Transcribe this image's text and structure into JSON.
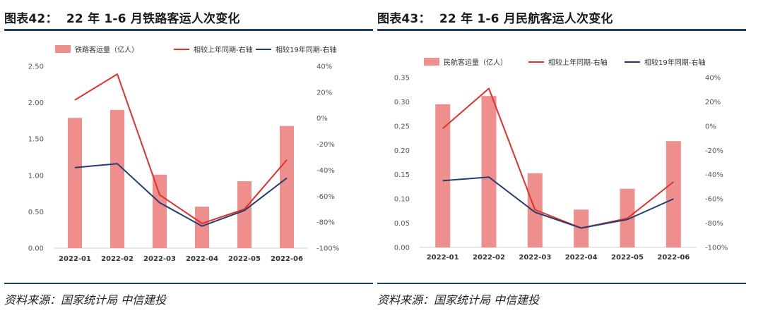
{
  "colors": {
    "bar": "#ef8f8d",
    "red_line": "#e2312a",
    "navy_line": "#263e6e",
    "rule": "#1f3d6b"
  },
  "chart_data": [
    {
      "type": "bar+line",
      "title": "图表42：  22 年 1-6 月铁路客运人次变化",
      "source": "资料来源：国家统计局   中信建投",
      "categories": [
        "2022-01",
        "2022-02",
        "2022-03",
        "2022-04",
        "2022-05",
        "2022-06"
      ],
      "bar_series": {
        "name": "铁路客运量（亿人）",
        "values": [
          1.79,
          1.9,
          1.01,
          0.57,
          0.92,
          1.68
        ]
      },
      "line_series": [
        {
          "name": "相较上年同期-右轴",
          "color_key": "red_line",
          "values": [
            14,
            34,
            -59,
            -81,
            -70,
            -32
          ]
        },
        {
          "name": "相较19年同期-右轴",
          "color_key": "navy_line",
          "values": [
            -38,
            -35,
            -65,
            -83,
            -71,
            -46
          ]
        }
      ],
      "y_left": {
        "min": 0,
        "max": 2.5,
        "step": 0.5,
        "ticks": [
          "0.00",
          "0.50",
          "1.00",
          "1.50",
          "2.00",
          "2.50"
        ]
      },
      "y_right": {
        "min": -100,
        "max": 40,
        "step": 20,
        "ticks": [
          "-100%",
          "-80%",
          "-60%",
          "-40%",
          "-20%",
          "0%",
          "20%",
          "40%"
        ]
      }
    },
    {
      "type": "bar+line",
      "title": "图表43：  22 年 1-6 月民航客运人次变化",
      "source": "资料来源：国家统计局   中信建投",
      "categories": [
        "2022-01",
        "2022-02",
        "2022-03",
        "2022-04",
        "2022-05",
        "2022-06"
      ],
      "bar_series": {
        "name": "民航客运量（亿人）",
        "values": [
          0.295,
          0.312,
          0.153,
          0.078,
          0.121,
          0.219
        ]
      },
      "line_series": [
        {
          "name": "相较上年同期-右轴",
          "color_key": "red_line",
          "values": [
            -2,
            31,
            -69,
            -84,
            -76,
            -46
          ]
        },
        {
          "name": "相较19年同期-右轴",
          "color_key": "navy_line",
          "values": [
            -45,
            -42,
            -71,
            -84,
            -77,
            -60
          ]
        }
      ],
      "y_left": {
        "min": 0,
        "max": 0.35,
        "step": 0.05,
        "ticks": [
          "0.00",
          "0.05",
          "0.10",
          "0.15",
          "0.20",
          "0.25",
          "0.30",
          "0.35"
        ]
      },
      "y_right": {
        "min": -100,
        "max": 40,
        "step": 20,
        "ticks": [
          "-100%",
          "-80%",
          "-60%",
          "-40%",
          "-20%",
          "0%",
          "20%",
          "40%"
        ]
      }
    }
  ]
}
